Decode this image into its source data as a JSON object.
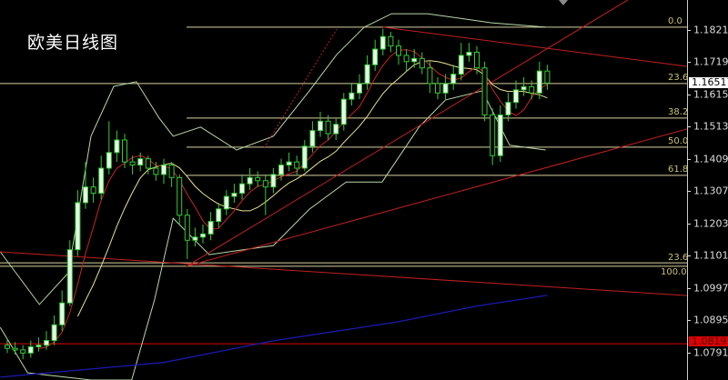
{
  "title": "欧美日线图",
  "chart_data": {
    "type": "candlestick",
    "title": "欧美日线图",
    "ylim": [
      1.07,
      1.193
    ],
    "y_ticks": [
      "1.18210",
      "1.17190",
      "1.16150",
      "1.15130",
      "1.14090",
      "1.13070",
      "1.12030",
      "1.11010",
      "1.09970",
      "1.08950",
      "1.07910"
    ],
    "current_price": "1.16517",
    "reference_price": "1.08197",
    "grid": false,
    "background": "#000000",
    "colors": {
      "candle": "#33cc33",
      "up_fill": "#e8ffe8",
      "ma_fast": "#cc2222",
      "ma_slow": "#e8e090",
      "bands": "#b8d8a8",
      "trendline": "#c02020",
      "long_ma": "#1a1ab0",
      "fib": "#d8d0a0",
      "reference_line": "#dd0000"
    },
    "open": [
      1.0815,
      1.0805,
      1.08,
      1.079,
      1.081,
      1.0815,
      1.083,
      1.088,
      1.095,
      1.112,
      1.127,
      1.132,
      1.13,
      1.138,
      1.143,
      1.147,
      1.14,
      1.139,
      1.141,
      1.138,
      1.136,
      1.139,
      1.135,
      1.123,
      1.115,
      1.116,
      1.117,
      1.121,
      1.125,
      1.129,
      1.13,
      1.133,
      1.135,
      1.134,
      1.132,
      1.136,
      1.139,
      1.14,
      1.138,
      1.145,
      1.15,
      1.153,
      1.149,
      1.152,
      1.16,
      1.162,
      1.165,
      1.171,
      1.176,
      1.18,
      1.177,
      1.174,
      1.172,
      1.173,
      1.17,
      1.165,
      1.162,
      1.165,
      1.168,
      1.174,
      1.175,
      1.17,
      1.155,
      1.142,
      1.155,
      1.159,
      1.163,
      1.164,
      1.162,
      1.169
    ],
    "high": [
      1.0835,
      1.0825,
      1.0815,
      1.083,
      1.084,
      1.086,
      1.091,
      1.099,
      1.115,
      1.131,
      1.14,
      1.135,
      1.142,
      1.153,
      1.15,
      1.149,
      1.142,
      1.143,
      1.142,
      1.14,
      1.141,
      1.14,
      1.136,
      1.125,
      1.119,
      1.12,
      1.124,
      1.127,
      1.131,
      1.133,
      1.136,
      1.138,
      1.137,
      1.136,
      1.138,
      1.141,
      1.143,
      1.142,
      1.147,
      1.153,
      1.156,
      1.155,
      1.154,
      1.162,
      1.165,
      1.168,
      1.174,
      1.179,
      1.1825,
      1.1815,
      1.179,
      1.176,
      1.176,
      1.175,
      1.172,
      1.167,
      1.168,
      1.171,
      1.178,
      1.178,
      1.177,
      1.172,
      1.157,
      1.158,
      1.162,
      1.166,
      1.167,
      1.166,
      1.172,
      1.171
    ],
    "low": [
      1.079,
      1.0785,
      1.077,
      1.0775,
      1.0795,
      1.08,
      1.0815,
      1.086,
      1.094,
      1.11,
      1.125,
      1.127,
      1.128,
      1.136,
      1.14,
      1.138,
      1.136,
      1.137,
      1.136,
      1.134,
      1.133,
      1.132,
      1.12,
      1.109,
      1.113,
      1.114,
      1.115,
      1.119,
      1.123,
      1.127,
      1.128,
      1.131,
      1.132,
      1.123,
      1.13,
      1.134,
      1.137,
      1.136,
      1.137,
      1.143,
      1.148,
      1.147,
      1.147,
      1.15,
      1.158,
      1.16,
      1.163,
      1.169,
      1.174,
      1.175,
      1.171,
      1.169,
      1.17,
      1.168,
      1.162,
      1.16,
      1.16,
      1.163,
      1.166,
      1.172,
      1.168,
      1.153,
      1.139,
      1.14,
      1.153,
      1.157,
      1.161,
      1.16,
      1.16,
      1.163
    ],
    "close": [
      1.0805,
      1.08,
      1.079,
      1.081,
      1.0815,
      1.083,
      1.088,
      1.095,
      1.112,
      1.127,
      1.132,
      1.13,
      1.138,
      1.143,
      1.147,
      1.14,
      1.139,
      1.141,
      1.138,
      1.136,
      1.139,
      1.135,
      1.123,
      1.115,
      1.116,
      1.117,
      1.121,
      1.125,
      1.129,
      1.13,
      1.133,
      1.135,
      1.134,
      1.132,
      1.136,
      1.139,
      1.14,
      1.138,
      1.145,
      1.15,
      1.153,
      1.149,
      1.152,
      1.16,
      1.162,
      1.165,
      1.171,
      1.176,
      1.18,
      1.177,
      1.174,
      1.172,
      1.173,
      1.17,
      1.165,
      1.162,
      1.165,
      1.168,
      1.174,
      1.175,
      1.17,
      1.155,
      1.142,
      1.155,
      1.159,
      1.163,
      1.164,
      1.162,
      1.169,
      1.16517
    ],
    "ma_periods": [
      5,
      10
    ],
    "bollinger_upper": [
      [
        -0.9,
        1.1113
      ],
      [
        4.1,
        1.0945
      ],
      [
        7.8,
        1.1046
      ],
      [
        10.7,
        1.1482
      ],
      [
        13.6,
        1.1641
      ],
      [
        16.5,
        1.1656
      ],
      [
        19.4,
        1.154
      ],
      [
        21.2,
        1.1482
      ],
      [
        24.7,
        1.1511
      ],
      [
        29.3,
        1.1438
      ],
      [
        34,
        1.1482
      ],
      [
        38.6,
        1.1627
      ],
      [
        42.1,
        1.1743
      ],
      [
        45.6,
        1.183
      ],
      [
        49.1,
        1.1873
      ],
      [
        53.7,
        1.1873
      ],
      [
        61.9,
        1.1844
      ],
      [
        68.8,
        1.183
      ]
    ],
    "bollinger_lower": [
      [
        -0.9,
        1.0872
      ],
      [
        2.6,
        1.0727
      ],
      [
        10.7,
        1.0704
      ],
      [
        15.9,
        1.0704
      ],
      [
        18.8,
        1.0959
      ],
      [
        21.2,
        1.122
      ],
      [
        25.8,
        1.1104
      ],
      [
        34,
        1.1133
      ],
      [
        38.6,
        1.1249
      ],
      [
        43.3,
        1.1336
      ],
      [
        47.9,
        1.1336
      ],
      [
        52.6,
        1.1511
      ],
      [
        56,
        1.1598
      ],
      [
        60.7,
        1.1627
      ],
      [
        64.2,
        1.1453
      ],
      [
        68.8,
        1.1438
      ]
    ],
    "long_ma": [
      [
        -0.9,
        1.0713
      ],
      [
        20,
        1.076
      ],
      [
        34,
        1.0829
      ],
      [
        50,
        1.089
      ],
      [
        60,
        1.094
      ],
      [
        69,
        1.0974
      ]
    ],
    "trendlines": [
      {
        "from": [
          22.9,
          1.1067
        ],
        "to": [
          79.3,
          1.1917
        ],
        "style": "solid"
      },
      {
        "from": [
          22.9,
          1.1067
        ],
        "to": [
          92.1,
          1.1541
        ],
        "style": "solid"
      },
      {
        "from": [
          -0.9,
          1.1113
        ],
        "to": [
          92.1,
          1.0965
        ],
        "style": "solid"
      },
      {
        "from": [
          48,
          1.183
        ],
        "to": [
          92.1,
          1.1688
        ],
        "style": "solid"
      },
      {
        "from": [
          32.8,
          1.1444
        ],
        "to": [
          42.1,
          1.1824
        ],
        "style": "dotted"
      }
    ],
    "fibonacci": [
      {
        "label": "0.0",
        "price": 1.183,
        "full": false
      },
      {
        "label": "23.6",
        "price": 1.165,
        "full": true
      },
      {
        "label": "38.2",
        "price": 1.154,
        "full": false
      },
      {
        "label": "50.0",
        "price": 1.1447,
        "full": false
      },
      {
        "label": "61.8",
        "price": 1.1357,
        "full": false
      },
      {
        "label": "23.6",
        "price": 1.1078,
        "full": true
      },
      {
        "label": "100.0",
        "price": 1.1067,
        "full": true
      }
    ]
  }
}
